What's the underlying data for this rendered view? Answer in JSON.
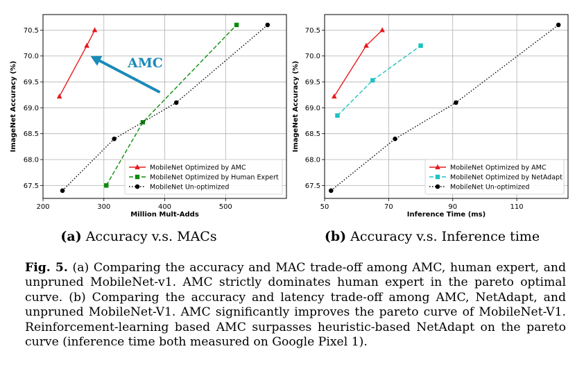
{
  "chart_data": [
    {
      "id": "a",
      "type": "line",
      "title": "",
      "xlabel": "Million Mult-Adds",
      "ylabel": "ImageNet Accuracy (%)",
      "xlim": [
        200,
        600
      ],
      "ylim": [
        67.25,
        70.8
      ],
      "xticks": [
        200,
        300,
        400,
        500
      ],
      "yticks": [
        67.5,
        68.0,
        68.5,
        69.0,
        69.5,
        70.0,
        70.5
      ],
      "ytick_labels": [
        "67.5",
        "68.0",
        "68.5",
        "69.0",
        "69.5",
        "70.0",
        "70.5"
      ],
      "grid": true,
      "legend_position": "lower-right",
      "annotation": {
        "text": "AMC",
        "color": "#1a8ab7",
        "arrow_from": [
          392,
          69.3
        ],
        "arrow_to": [
          278,
          70.0
        ]
      },
      "series": [
        {
          "name": "MobileNet Optimized by AMC",
          "color": "#e8191b",
          "style": "solid",
          "marker": "triangle",
          "x": [
            227,
            272,
            285
          ],
          "y": [
            69.22,
            70.2,
            70.5
          ]
        },
        {
          "name": "MobileNet Optimized by Human Expert",
          "color": "#0a8c0a",
          "style": "dashed",
          "marker": "square",
          "x": [
            304,
            364,
            518
          ],
          "y": [
            67.5,
            68.72,
            70.6
          ]
        },
        {
          "name": "MobileNet Un-optimized",
          "color": "#000000",
          "style": "dotted",
          "marker": "circle",
          "x": [
            232,
            317,
            419,
            569
          ],
          "y": [
            67.4,
            68.4,
            69.1,
            70.6
          ]
        }
      ]
    },
    {
      "id": "b",
      "type": "line",
      "title": "",
      "xlabel": "Inference Time (ms)",
      "ylabel": "ImageNet Accuracy (%)",
      "xlim": [
        50,
        126
      ],
      "ylim": [
        67.25,
        70.8
      ],
      "xticks": [
        50,
        70,
        90,
        110
      ],
      "yticks": [
        67.5,
        68.0,
        68.5,
        69.0,
        69.5,
        70.0,
        70.5
      ],
      "ytick_labels": [
        "67.5",
        "68.0",
        "68.5",
        "69.0",
        "69.5",
        "70.0",
        "70.5"
      ],
      "grid": true,
      "legend_position": "lower-right",
      "series": [
        {
          "name": "MobileNet Optimized by AMC",
          "color": "#e8191b",
          "style": "solid",
          "marker": "triangle",
          "x": [
            53,
            63,
            68
          ],
          "y": [
            69.22,
            70.2,
            70.5
          ]
        },
        {
          "name": "MobileNet Optimized by NetAdapt",
          "color": "#1fc1c1",
          "style": "dashed",
          "marker": "square",
          "x": [
            54,
            65,
            80
          ],
          "y": [
            68.85,
            69.53,
            70.2
          ]
        },
        {
          "name": "MobileNet Un-optimized",
          "color": "#000000",
          "style": "dotted",
          "marker": "circle",
          "x": [
            52,
            72,
            91,
            123
          ],
          "y": [
            67.4,
            68.4,
            69.1,
            70.6
          ]
        }
      ]
    }
  ],
  "subcaptions": {
    "a": {
      "label": "(a)",
      "text": "Accuracy v.s. MACs"
    },
    "b": {
      "label": "(b)",
      "text": "Accuracy v.s. Inference time"
    }
  },
  "caption": {
    "label": "Fig. 5.",
    "text": "(a) Comparing the accuracy and MAC trade-off among AMC, human expert, and unpruned MobileNet-v1. AMC strictly dominates human expert in the pareto optimal curve. (b) Comparing the accuracy and latency trade-off among AMC, NetAdapt, and unpruned MobileNet-V1. AMC significantly improves the pareto curve of MobileNet-V1. Reinforcement-learning based AMC surpasses heuristic-based NetAdapt on the pareto curve (inference time both measured on Google Pixel 1)."
  }
}
